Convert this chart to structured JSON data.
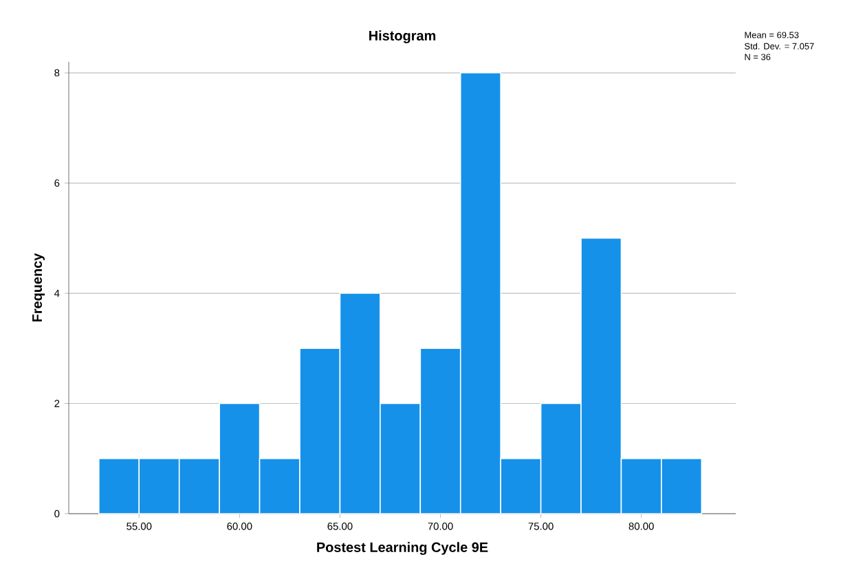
{
  "chart_data": {
    "type": "histogram",
    "title": "Histogram",
    "xlabel": "Postest Learning Cycle 9E",
    "ylabel": "Frequency",
    "bins": [
      53,
      55,
      57,
      59,
      61,
      63,
      65,
      67,
      69,
      71,
      73,
      75,
      77,
      79,
      81,
      83
    ],
    "values": [
      1,
      1,
      1,
      2,
      1,
      3,
      4,
      2,
      3,
      8,
      1,
      2,
      5,
      1,
      1
    ],
    "color": "#1591ea",
    "xlim": [
      51.5,
      84.7
    ],
    "ylim": [
      0,
      8.2
    ],
    "xticks": [
      {
        "value": 55,
        "label": "55.00"
      },
      {
        "value": 60,
        "label": "60.00"
      },
      {
        "value": 65,
        "label": "65.00"
      },
      {
        "value": 70,
        "label": "70.00"
      },
      {
        "value": 75,
        "label": "75.00"
      },
      {
        "value": 80,
        "label": "80.00"
      }
    ],
    "yticks": [
      0,
      2,
      4,
      6,
      8
    ],
    "grid": "y",
    "annotations": [
      "Mean = 69.53",
      "Std. Dev. = 7.057",
      "N = 36"
    ]
  }
}
